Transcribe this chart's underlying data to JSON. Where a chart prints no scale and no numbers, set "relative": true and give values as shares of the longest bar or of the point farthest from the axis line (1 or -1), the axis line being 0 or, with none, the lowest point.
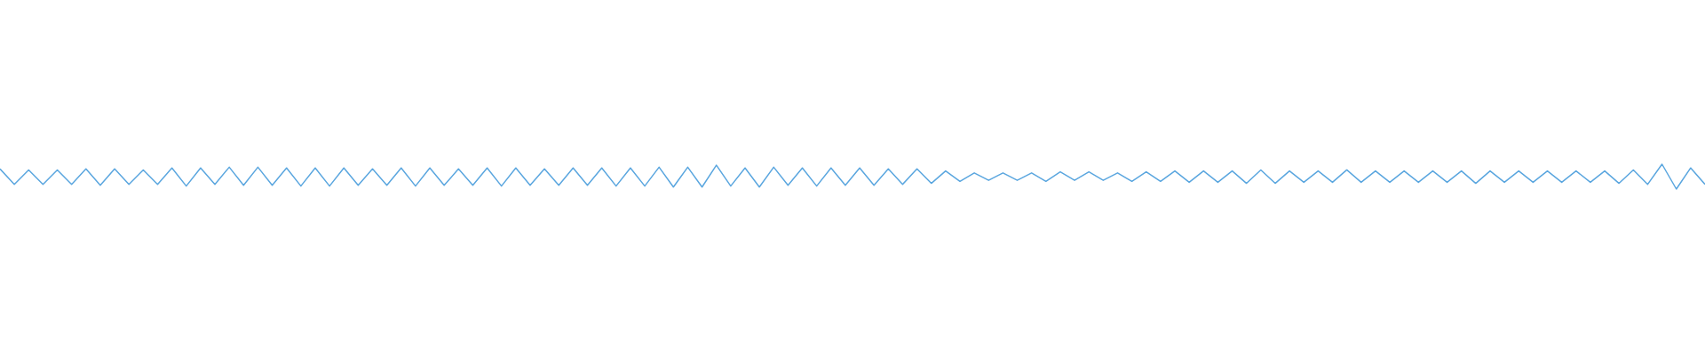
{
  "chart_data": {
    "type": "line",
    "relative": true,
    "color": "#5aa6df",
    "categories": [
      null,
      null,
      null,
      null,
      null,
      null,
      null,
      null,
      null,
      null,
      null,
      null,
      null,
      null,
      null,
      null,
      null,
      null,
      null,
      null,
      null,
      null,
      null,
      null,
      null,
      null,
      null,
      null,
      null,
      null,
      null,
      null,
      null,
      null,
      null,
      null,
      null,
      null,
      null,
      null,
      null,
      null,
      null,
      null,
      null,
      null,
      null,
      null,
      null,
      null,
      null,
      null,
      null,
      null,
      null,
      null,
      null,
      null,
      null,
      null,
      null,
      null,
      null,
      null,
      null,
      null,
      null,
      null,
      null,
      null,
      null,
      null,
      null,
      null,
      null,
      null,
      null,
      null,
      null,
      null,
      null,
      null,
      null,
      null,
      null,
      null,
      null,
      null,
      null,
      null,
      null,
      null,
      null,
      null,
      null,
      null,
      null,
      null,
      null,
      null,
      null,
      null,
      null,
      null,
      null,
      null,
      null,
      null,
      null,
      null,
      null,
      null,
      null,
      null,
      null,
      null,
      null,
      null,
      null,
      null
    ],
    "values": [
      0.81,
      0.19,
      0.77,
      0.19,
      0.77,
      0.19,
      0.81,
      0.15,
      0.81,
      0.19,
      0.77,
      0.19,
      0.85,
      0.12,
      0.85,
      0.19,
      0.88,
      0.15,
      0.88,
      0.15,
      0.85,
      0.12,
      0.85,
      0.12,
      0.85,
      0.15,
      0.81,
      0.15,
      0.85,
      0.12,
      0.85,
      0.15,
      0.81,
      0.15,
      0.85,
      0.12,
      0.85,
      0.15,
      0.81,
      0.15,
      0.85,
      0.15,
      0.85,
      0.12,
      0.85,
      0.12,
      0.88,
      0.08,
      0.88,
      0.08,
      0.96,
      0.12,
      0.85,
      0.08,
      0.88,
      0.15,
      0.85,
      0.12,
      0.85,
      0.15,
      0.85,
      0.15,
      0.81,
      0.19,
      0.81,
      0.23,
      0.73,
      0.31,
      0.65,
      0.35,
      0.65,
      0.35,
      0.65,
      0.31,
      0.69,
      0.35,
      0.69,
      0.35,
      0.65,
      0.31,
      0.69,
      0.31,
      0.73,
      0.27,
      0.73,
      0.27,
      0.73,
      0.23,
      0.77,
      0.23,
      0.73,
      0.27,
      0.73,
      0.27,
      0.77,
      0.27,
      0.73,
      0.27,
      0.73,
      0.27,
      0.73,
      0.27,
      0.73,
      0.23,
      0.73,
      0.27,
      0.73,
      0.27,
      0.73,
      0.27,
      0.73,
      0.27,
      0.73,
      0.23,
      0.77,
      0.19,
      1,
      0,
      0.85,
      0.19
    ]
  }
}
